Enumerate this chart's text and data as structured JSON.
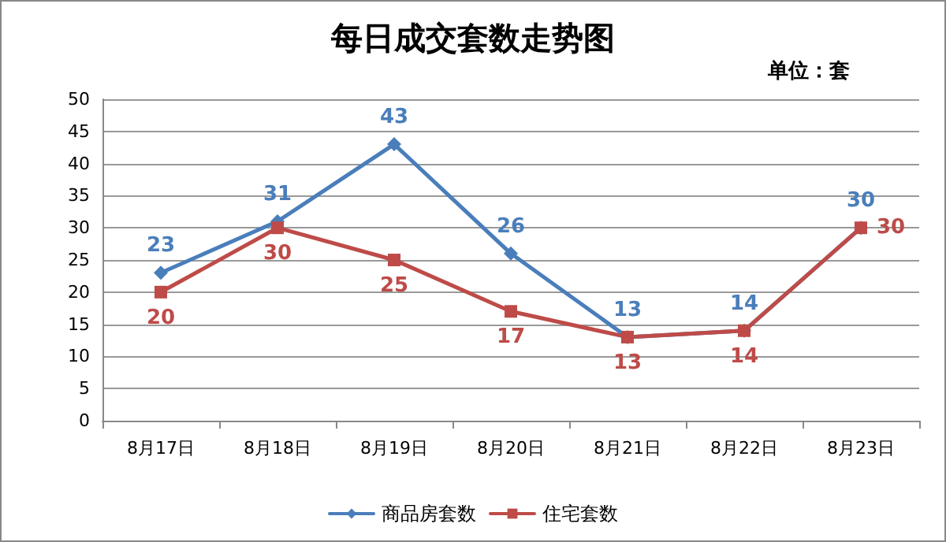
{
  "chart_data": {
    "type": "line",
    "title": "每日成交套数走势图",
    "annotations": [
      "单位：套"
    ],
    "categories": [
      "8月17日",
      "8月18日",
      "8月19日",
      "8月20日",
      "8月21日",
      "8月22日",
      "8月23日"
    ],
    "series": [
      {
        "name": "商品房套数",
        "color": "#4a7ebb",
        "marker": "diamond",
        "values": [
          23,
          31,
          43,
          26,
          13,
          14,
          30
        ]
      },
      {
        "name": "住宅套数",
        "color": "#be4b48",
        "marker": "square",
        "values": [
          20,
          30,
          25,
          17,
          13,
          14,
          30
        ]
      }
    ],
    "ylim": [
      0,
      50
    ],
    "yticks": [
      0,
      5,
      10,
      15,
      20,
      25,
      30,
      35,
      40,
      45,
      50
    ],
    "grid": "y",
    "legend": "bottom",
    "data_labels": true,
    "line_style": "solid"
  }
}
